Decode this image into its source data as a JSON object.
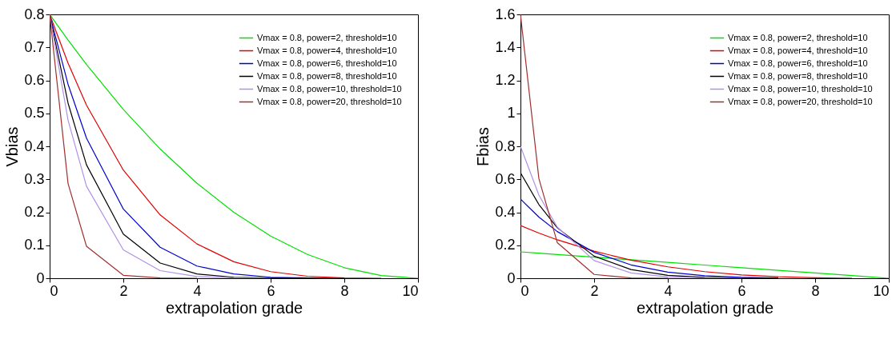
{
  "chart_data": [
    {
      "type": "line",
      "xlabel": "extrapolation grade",
      "ylabel": "Vbias",
      "x": [
        0,
        0.5,
        1,
        2,
        3,
        4,
        5,
        6,
        7,
        8,
        9,
        10
      ],
      "xlim": [
        0,
        10
      ],
      "xticks": [
        0,
        2,
        4,
        6,
        8,
        10
      ],
      "ylim": [
        0,
        0.8
      ],
      "yticks": [
        0,
        0.1,
        0.2,
        0.3,
        0.4,
        0.5,
        0.6,
        0.7,
        0.8
      ],
      "legend": "top right",
      "series": [
        {
          "name": "Vmax = 0.8, power=2, threshold=10",
          "color": "#00e000",
          "values": [
            0.8,
            0.722,
            0.648,
            0.512,
            0.392,
            0.288,
            0.2,
            0.128,
            0.072,
            0.032,
            0.008,
            0
          ]
        },
        {
          "name": "Vmax = 0.8, power=4, threshold=10",
          "color": "#e00000",
          "values": [
            0.8,
            0.652,
            0.525,
            0.328,
            0.192,
            0.104,
            0.05,
            0.02,
            0.006,
            0.001,
            0,
            null
          ]
        },
        {
          "name": "Vmax = 0.8, power=6, threshold=10",
          "color": "#0000d0",
          "values": [
            0.8,
            0.588,
            0.425,
            0.21,
            0.094,
            0.037,
            0.013,
            0.003,
            0.001,
            0,
            null,
            null
          ]
        },
        {
          "name": "Vmax = 0.8, power=8, threshold=10",
          "color": "#000000",
          "values": [
            0.8,
            0.531,
            0.344,
            0.134,
            0.046,
            0.013,
            0.003,
            0.001,
            0,
            null,
            null,
            null
          ]
        },
        {
          "name": "Vmax = 0.8, power=10, threshold=10",
          "color": "#b090e8",
          "values": [
            0.8,
            0.479,
            0.279,
            0.086,
            0.023,
            0.005,
            0.001,
            0,
            null,
            null,
            null,
            null
          ]
        },
        {
          "name": "Vmax = 0.8, power=20, threshold=10",
          "color": "#a03030",
          "values": [
            0.8,
            0.287,
            0.097,
            0.009,
            0.001,
            0,
            null,
            null,
            null,
            null,
            null,
            null
          ]
        }
      ]
    },
    {
      "type": "line",
      "xlabel": "extrapolation grade",
      "ylabel": "Fbias",
      "x": [
        0,
        0.5,
        1,
        2,
        3,
        4,
        5,
        6,
        7,
        8,
        9,
        10
      ],
      "xlim": [
        0,
        10
      ],
      "xticks": [
        0,
        2,
        4,
        6,
        8,
        10
      ],
      "ylim": [
        0,
        1.6
      ],
      "yticks": [
        0,
        0.2,
        0.4,
        0.6,
        0.8,
        1,
        1.2,
        1.4,
        1.6
      ],
      "legend": "top right",
      "series": [
        {
          "name": "Vmax = 0.8, power=2, threshold=10",
          "color": "#00e000",
          "values": [
            0.16,
            0.152,
            0.144,
            0.128,
            0.112,
            0.096,
            0.08,
            0.064,
            0.048,
            0.032,
            0.016,
            0
          ]
        },
        {
          "name": "Vmax = 0.8, power=4, threshold=10",
          "color": "#e00000",
          "values": [
            0.32,
            0.274,
            0.233,
            0.164,
            0.11,
            0.069,
            0.04,
            0.02,
            0.009,
            0.003,
            0,
            null
          ]
        },
        {
          "name": "Vmax = 0.8, power=6, threshold=10",
          "color": "#0000d0",
          "values": [
            0.48,
            0.371,
            0.283,
            0.157,
            0.081,
            0.037,
            0.015,
            0.005,
            0.001,
            null,
            null,
            null
          ]
        },
        {
          "name": "Vmax = 0.8, power=8, threshold=10",
          "color": "#000000",
          "values": [
            0.64,
            0.447,
            0.306,
            0.134,
            0.053,
            0.018,
            0.005,
            0.001,
            0,
            null,
            null,
            null
          ]
        },
        {
          "name": "Vmax = 0.8, power=10, threshold=10",
          "color": "#b090e8",
          "values": [
            0.8,
            0.504,
            0.31,
            0.107,
            0.032,
            0.008,
            0.002,
            0,
            null,
            null,
            null,
            null
          ]
        },
        {
          "name": "Vmax = 0.8, power=20, threshold=10",
          "color": "#a03030",
          "values": [
            1.6,
            0.604,
            0.216,
            0.023,
            0.002,
            0,
            null,
            null,
            null,
            null,
            null,
            null
          ]
        }
      ]
    }
  ]
}
